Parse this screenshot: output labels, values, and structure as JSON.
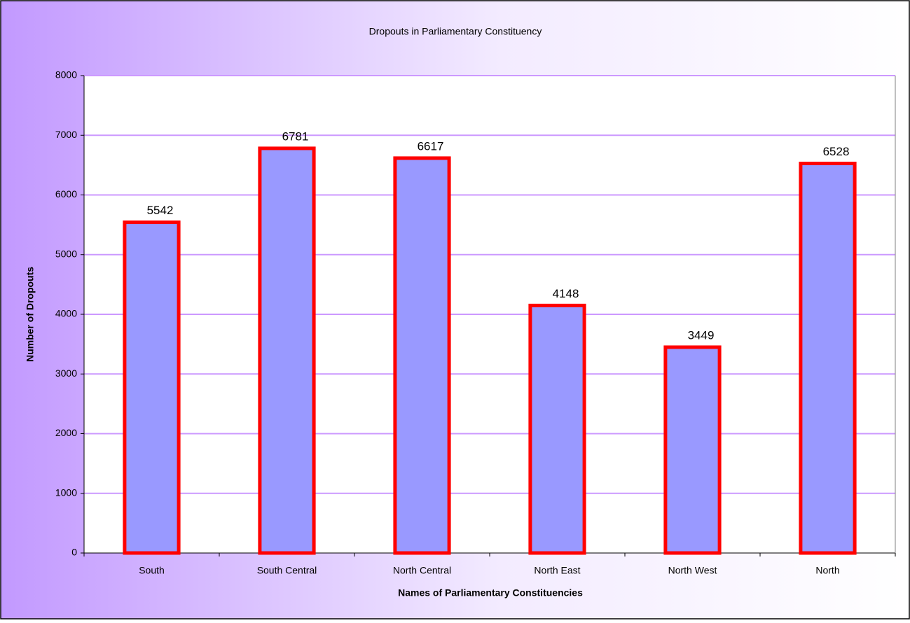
{
  "chart_data": {
    "type": "bar",
    "title": "Dropouts in Parliamentary Constituency",
    "x_label": "Names of Parliamentary Constituencies",
    "y_label": "Number of Dropouts",
    "categories": [
      "South",
      "South Central",
      "North Central",
      "North East",
      "North West",
      "North"
    ],
    "values": [
      5542,
      6781,
      6617,
      4148,
      3449,
      6528
    ],
    "color": "#9999ff",
    "edge_color": "#ff0000",
    "ylim": [
      0,
      8000
    ],
    "yticks": [
      0,
      1000,
      2000,
      3000,
      4000,
      5000,
      6000,
      7000,
      8000
    ],
    "grid": true,
    "grid_color": "#cc99ff"
  }
}
